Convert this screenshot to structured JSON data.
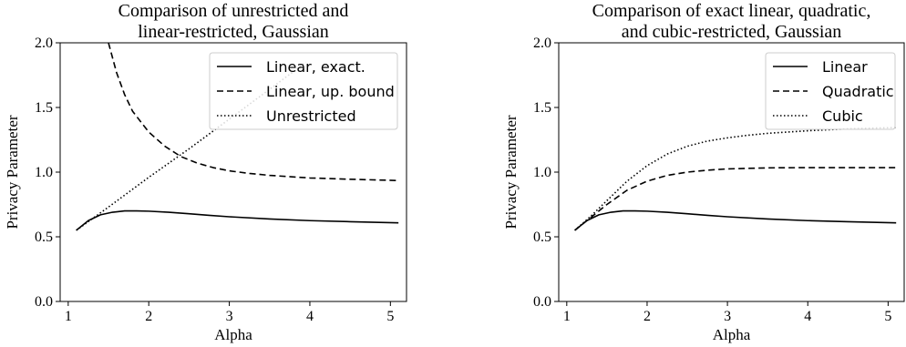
{
  "chart_data": [
    {
      "type": "line",
      "title": "Comparison of unrestricted and\nlinear-restricted, Gaussian",
      "xlabel": "Alpha",
      "ylabel": "Privacy Parameter",
      "xlim": [
        0.9,
        5.2
      ],
      "ylim": [
        0.0,
        2.0
      ],
      "xticks": [
        1,
        2,
        3,
        4,
        5
      ],
      "yticks": [
        0.0,
        0.5,
        1.0,
        1.5,
        2.0
      ],
      "ytick_labels": [
        "0.0",
        "0.5",
        "1.0",
        "1.5",
        "2.0"
      ],
      "grid": false,
      "legend_position": "top-right",
      "series": [
        {
          "name": "Linear, exact.",
          "style": "solid",
          "x": [
            1.1,
            1.25,
            1.4,
            1.55,
            1.7,
            1.85,
            2.0,
            2.25,
            2.5,
            2.75,
            3.0,
            3.5,
            4.0,
            4.5,
            5.1
          ],
          "y": [
            0.55,
            0.625,
            0.67,
            0.69,
            0.7,
            0.7,
            0.698,
            0.69,
            0.678,
            0.666,
            0.655,
            0.638,
            0.625,
            0.617,
            0.608
          ]
        },
        {
          "name": "Linear, up. bound",
          "style": "dashed",
          "x": [
            1.5,
            1.6,
            1.7,
            1.8,
            2.0,
            2.2,
            2.4,
            2.6,
            2.8,
            3.0,
            3.25,
            3.5,
            4.0,
            4.5,
            5.1
          ],
          "y": [
            2.0,
            1.77,
            1.6,
            1.47,
            1.31,
            1.2,
            1.12,
            1.07,
            1.035,
            1.01,
            0.99,
            0.975,
            0.955,
            0.945,
            0.935
          ]
        },
        {
          "name": "Unrestricted",
          "style": "dotted",
          "x": [
            1.1,
            1.5,
            2.0,
            2.5,
            3.0,
            3.5,
            3.95
          ],
          "y": [
            0.55,
            0.73,
            0.96,
            1.18,
            1.41,
            1.64,
            1.85
          ]
        }
      ]
    },
    {
      "type": "line",
      "title": "Comparison of exact linear, quadratic,\nand cubic-restricted, Gaussian",
      "xlabel": "Alpha",
      "ylabel": "Privacy Parameter",
      "xlim": [
        0.9,
        5.2
      ],
      "ylim": [
        0.0,
        2.0
      ],
      "xticks": [
        1,
        2,
        3,
        4,
        5
      ],
      "yticks": [
        0.0,
        0.5,
        1.0,
        1.5,
        2.0
      ],
      "ytick_labels": [
        "0.0",
        "0.5",
        "1.0",
        "1.5",
        "2.0"
      ],
      "grid": false,
      "legend_position": "top-right",
      "series": [
        {
          "name": "Linear",
          "style": "solid",
          "x": [
            1.1,
            1.25,
            1.4,
            1.55,
            1.7,
            1.85,
            2.0,
            2.25,
            2.5,
            2.75,
            3.0,
            3.5,
            4.0,
            4.5,
            5.1
          ],
          "y": [
            0.55,
            0.625,
            0.67,
            0.69,
            0.7,
            0.7,
            0.698,
            0.69,
            0.678,
            0.666,
            0.655,
            0.638,
            0.625,
            0.617,
            0.608
          ]
        },
        {
          "name": "Quadratic",
          "style": "dashed",
          "x": [
            1.1,
            1.3,
            1.5,
            1.75,
            2.0,
            2.25,
            2.5,
            2.75,
            3.0,
            3.5,
            4.0,
            4.5,
            5.1
          ],
          "y": [
            0.55,
            0.65,
            0.75,
            0.86,
            0.93,
            0.975,
            1.0,
            1.015,
            1.025,
            1.033,
            1.035,
            1.035,
            1.035
          ]
        },
        {
          "name": "Cubic",
          "style": "dotted",
          "x": [
            1.1,
            1.3,
            1.5,
            1.75,
            2.0,
            2.25,
            2.5,
            2.75,
            3.0,
            3.25,
            3.5,
            4.0,
            4.5,
            5.1
          ],
          "y": [
            0.55,
            0.66,
            0.78,
            0.93,
            1.05,
            1.14,
            1.2,
            1.24,
            1.265,
            1.285,
            1.3,
            1.32,
            1.335,
            1.345
          ]
        }
      ]
    }
  ]
}
